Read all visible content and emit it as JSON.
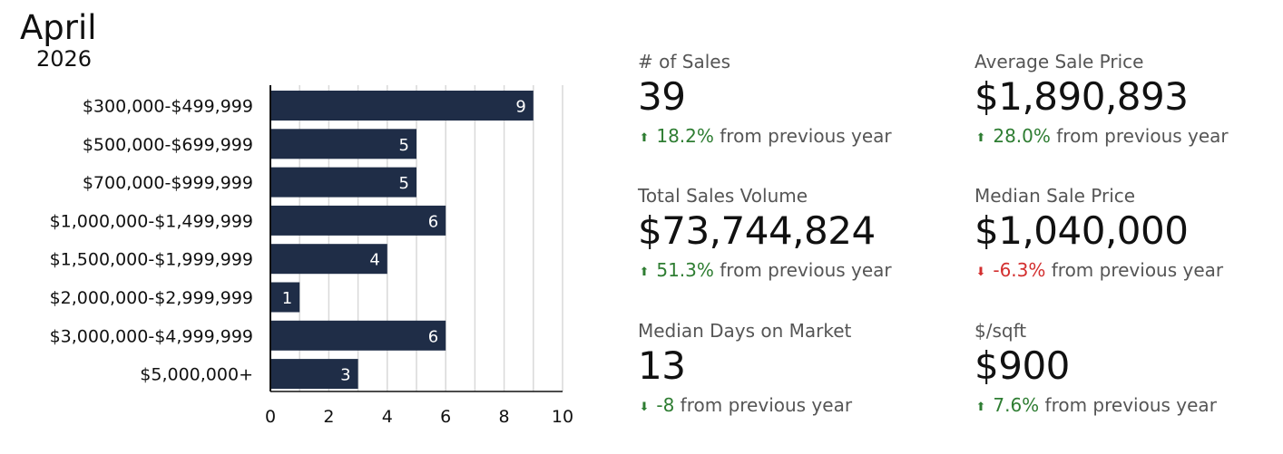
{
  "header": {
    "month": "April",
    "year": "2026"
  },
  "chart_data": {
    "type": "bar",
    "orientation": "horizontal",
    "categories": [
      "$300,000-$499,999",
      "$500,000-$699,999",
      "$700,000-$999,999",
      "$1,000,000-$1,499,999",
      "$1,500,000-$1,999,999",
      "$2,000,000-$2,999,999",
      "$3,000,000-$4,999,999",
      "$5,000,000+"
    ],
    "values": [
      9,
      5,
      5,
      6,
      4,
      1,
      6,
      3
    ],
    "xlim": [
      0,
      10
    ],
    "xticks": [
      "0",
      "2",
      "4",
      "6",
      "8",
      "10"
    ],
    "grid": true,
    "bar_color": "#1f2d47",
    "label_color": "#ffffff"
  },
  "stats": [
    {
      "label": "# of Sales",
      "value": "39",
      "change": "18.2%",
      "direction": "up",
      "trend": "positive",
      "suffix": "from previous year"
    },
    {
      "label": "Average Sale Price",
      "value": "$1,890,893",
      "change": "28.0%",
      "direction": "up",
      "trend": "positive",
      "suffix": "from previous year"
    },
    {
      "label": "Total Sales Volume",
      "value": "$73,744,824",
      "change": "51.3%",
      "direction": "up",
      "trend": "positive",
      "suffix": "from previous year"
    },
    {
      "label": "Median Sale Price",
      "value": "$1,040,000",
      "change": "-6.3%",
      "direction": "down",
      "trend": "negative",
      "suffix": "from previous year"
    },
    {
      "label": "Median Days on Market",
      "value": "13",
      "change": "-8",
      "direction": "down",
      "trend": "positive",
      "suffix": "from previous year"
    },
    {
      "label": "$/sqft",
      "value": "$900",
      "change": "7.6%",
      "direction": "up",
      "trend": "positive",
      "suffix": "from previous year"
    }
  ],
  "colors": {
    "positive": "#2e7d32",
    "negative": "#d32f2f",
    "bar": "#1f2d47"
  },
  "icons": {
    "up": "arrow-up-icon",
    "down": "arrow-down-icon"
  }
}
